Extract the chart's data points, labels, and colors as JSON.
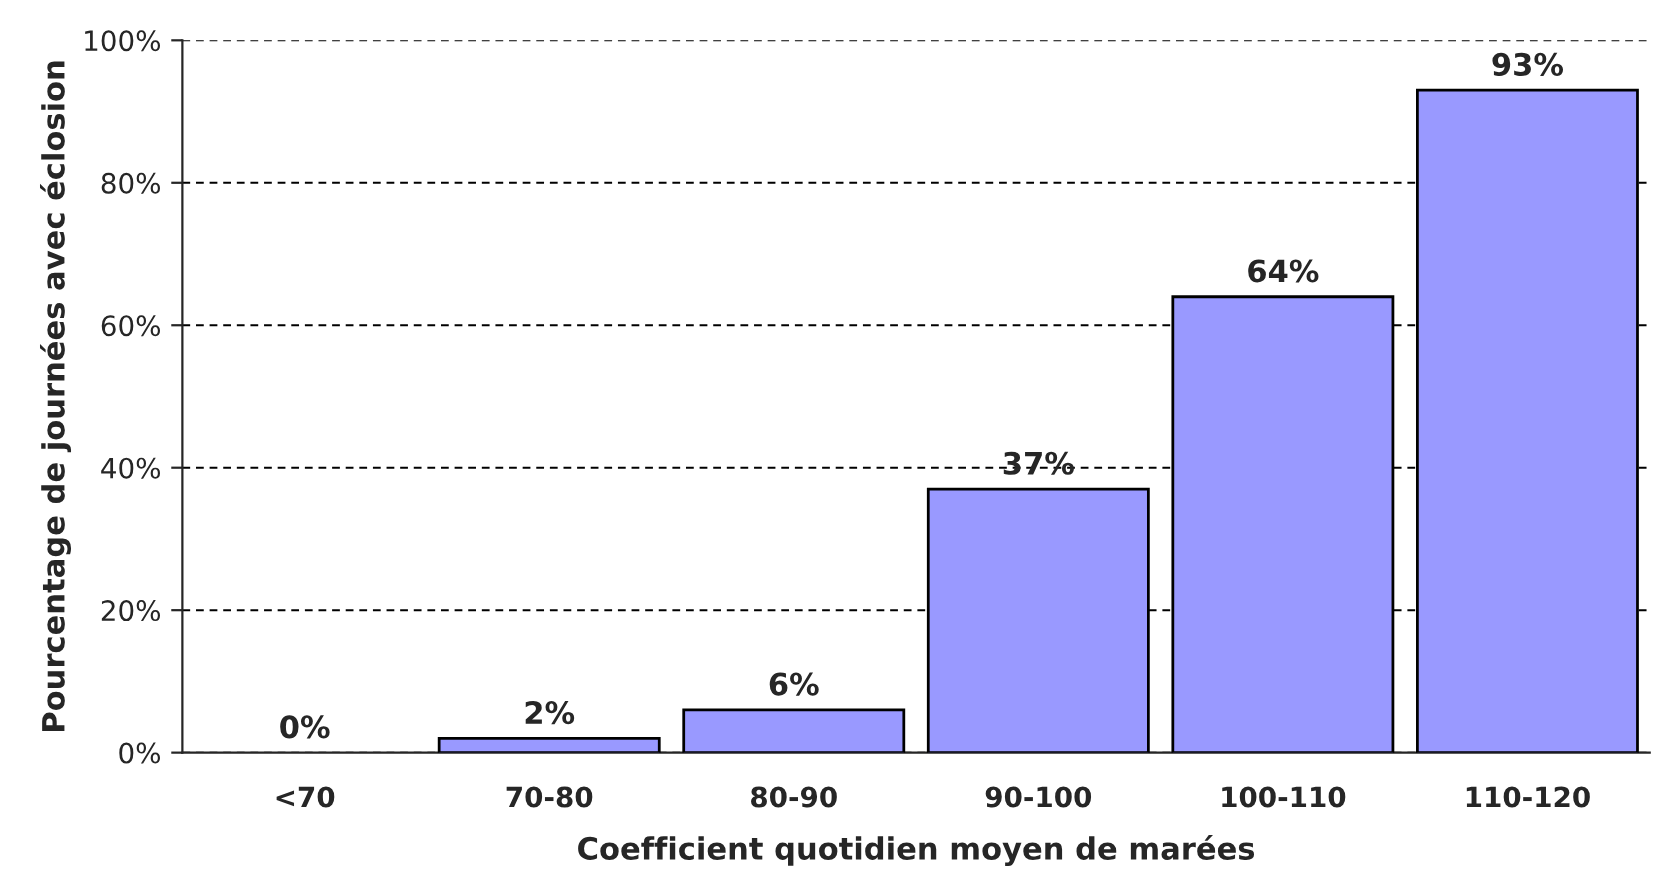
{
  "chart_data": {
    "type": "bar",
    "xlabel": "Coefficient quotidien moyen de marées",
    "ylabel": "Pourcentage de journées avec éclosion",
    "categories": [
      "<70",
      "70-80",
      "80-90",
      "90-100",
      "100-110",
      "110-120"
    ],
    "values": [
      0,
      2,
      6,
      37,
      64,
      93
    ],
    "value_labels": [
      "0%",
      "2%",
      "6%",
      "37%",
      "64%",
      "93%"
    ],
    "color": "#9999ff",
    "ylim": [
      0,
      100
    ],
    "yticks": [
      {
        "value": 0,
        "label": "0%"
      },
      {
        "value": 20,
        "label": "20%"
      },
      {
        "value": 40,
        "label": "40%"
      },
      {
        "value": 60,
        "label": "60%"
      },
      {
        "value": 80,
        "label": "80%"
      },
      {
        "value": 100,
        "label": "100%"
      }
    ],
    "grid": "y",
    "line_style": "dashed"
  }
}
